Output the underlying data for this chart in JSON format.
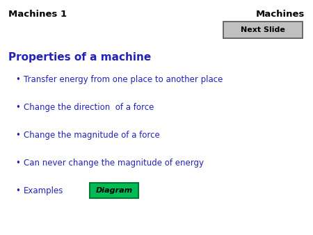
{
  "bg_color": "#ffffff",
  "title_left": "Machines 1",
  "title_right": "Machines",
  "title_color": "#000000",
  "title_fontsize": 9.5,
  "next_slide_text": "Next Slide",
  "next_slide_bg": "#c0c0c0",
  "next_slide_border": "#555555",
  "section_title": "Properties of a machine",
  "section_title_color": "#2222bb",
  "section_title_fontsize": 11,
  "bullet_color": "#2222bb",
  "bullet_fontsize": 8.5,
  "bullets": [
    "Transfer energy from one place to another place",
    "Change the direction  of a force",
    "Change the magnitude of a force",
    "Can never change the magnitude of energy",
    "Examples"
  ],
  "diagram_text": "Diagram",
  "diagram_bg": "#00bb55",
  "diagram_border": "#007733",
  "diagram_text_color": "#000000",
  "diagram_fontsize": 8
}
